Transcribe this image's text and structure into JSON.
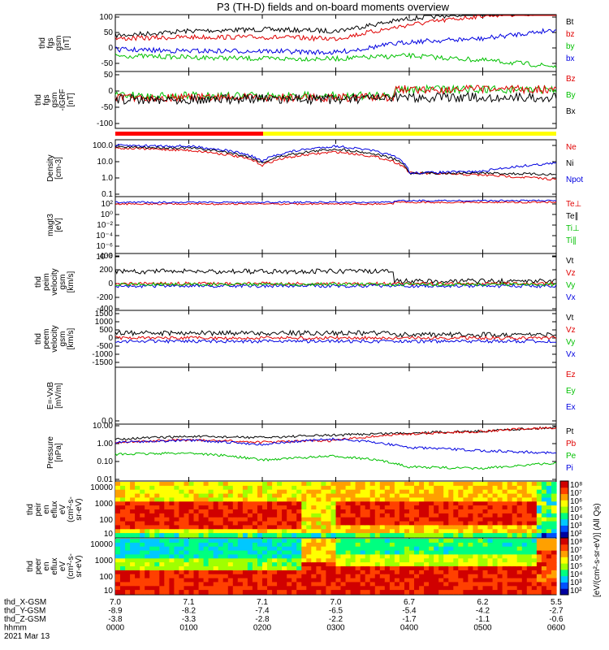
{
  "title": "P3 (TH-D) fields and on-board moments overview",
  "panels": [
    {
      "id": "fgs",
      "ylabel": [
        "thd",
        "fgs",
        "gsm",
        "[nT]"
      ],
      "ticks": [
        "100",
        "50",
        "0",
        "-50"
      ],
      "legend": [
        {
          "label": "Bt",
          "color": "#000000"
        },
        {
          "label": "bz",
          "color": "#e00000"
        },
        {
          "label": "by",
          "color": "#00c000"
        },
        {
          "label": "bx",
          "color": "#0000e0"
        }
      ]
    },
    {
      "id": "fgs-r",
      "ylabel": [
        "thd",
        "fgs",
        "gsm",
        "-IGRF",
        "[nT]"
      ],
      "ticks": [
        "50",
        "0",
        "-50",
        "-100"
      ],
      "legend": [
        {
          "label": "Bz",
          "color": "#e00000"
        },
        {
          "label": "By",
          "color": "#00c000"
        },
        {
          "label": "Bx",
          "color": "#000000"
        }
      ]
    },
    {
      "id": "density",
      "ylabel": [
        "Density",
        "[cm-3]"
      ],
      "ticks": [
        "100.0",
        "10.0",
        "1.0",
        "0.1"
      ],
      "legend": [
        {
          "label": "Ne",
          "color": "#e00000"
        },
        {
          "label": "Ni",
          "color": "#000000"
        },
        {
          "label": "Npot",
          "color": "#0000e0"
        }
      ]
    },
    {
      "id": "temp",
      "ylabel": [
        "magt3",
        "[eV]"
      ],
      "ticks": [
        "10²",
        "10⁰",
        "10⁻²",
        "10⁻⁴",
        "10⁻⁶",
        "10⁻⁸"
      ],
      "legend": [
        {
          "label": "Te⊥",
          "color": "#e00000"
        },
        {
          "label": "Te∥",
          "color": "#000000"
        },
        {
          "label": "Ti⊥",
          "color": "#00c000"
        },
        {
          "label": "Ti∥",
          "color": "#00c000"
        }
      ]
    },
    {
      "id": "peim",
      "ylabel": [
        "thd",
        "peim",
        "velocity",
        "gsm",
        "[km/s]"
      ],
      "ticks": [
        "400",
        "200",
        "0",
        "-200",
        "-400"
      ],
      "legend": [
        {
          "label": "Vt",
          "color": "#000000"
        },
        {
          "label": "Vz",
          "color": "#e00000"
        },
        {
          "label": "Vy",
          "color": "#00c000"
        },
        {
          "label": "Vx",
          "color": "#0000e0"
        }
      ]
    },
    {
      "id": "peem",
      "ylabel": [
        "thd",
        "peem",
        "velocity",
        "gsm",
        "[km/s]"
      ],
      "ticks": [
        "1500",
        "1000",
        "500",
        "0",
        "-500",
        "-1000",
        "-1500"
      ],
      "legend": [
        {
          "label": "Vt",
          "color": "#000000"
        },
        {
          "label": "Vz",
          "color": "#e00000"
        },
        {
          "label": "Vy",
          "color": "#00c000"
        },
        {
          "label": "Vx",
          "color": "#0000e0"
        }
      ]
    },
    {
      "id": "efield",
      "ylabel": [
        "E=-VxB",
        "[mV/m]"
      ],
      "ticks": [
        "0.0"
      ],
      "legend": [
        {
          "label": "Ez",
          "color": "#e00000"
        },
        {
          "label": "Ey",
          "color": "#00c000"
        },
        {
          "label": "Ex",
          "color": "#0000e0"
        }
      ]
    },
    {
      "id": "pressure",
      "ylabel": [
        "Pressure",
        "[nPa]"
      ],
      "ticks": [
        "10.00",
        "1.00",
        "0.10",
        "0.01"
      ],
      "legend": [
        {
          "label": "Pt",
          "color": "#000000"
        },
        {
          "label": "Pb",
          "color": "#e00000"
        },
        {
          "label": "Pe",
          "color": "#00c000"
        },
        {
          "label": "Pi",
          "color": "#0000e0"
        }
      ]
    },
    {
      "id": "peir",
      "ylabel": [
        "thd",
        "peir",
        "en",
        "eflux",
        "eV",
        "(cm²-s-",
        "sr-eV)"
      ],
      "ticks": [
        "10000",
        "1000",
        "100",
        "10"
      ]
    },
    {
      "id": "peer",
      "ylabel": [
        "thd",
        "peer",
        "en",
        "eflux",
        "eV",
        "(cm²-s-",
        "sr-eV)"
      ],
      "ticks": [
        "10000",
        "1000",
        "100",
        "10"
      ]
    }
  ],
  "colorbar": {
    "ticks": [
      "10⁸",
      "10⁷",
      "10⁶",
      "10⁵",
      "10⁴",
      "10³",
      "10²"
    ],
    "label": "[eV/(cm²-s-sr-eV)] (All Qs)"
  },
  "xaxis": {
    "rows": [
      {
        "label": "thd_X-GSM",
        "values": [
          "7.0",
          "7.1",
          "7.1",
          "7.0",
          "6.7",
          "6.2",
          "5.5"
        ]
      },
      {
        "label": "thd_Y-GSM",
        "values": [
          "-8.9",
          "-8.2",
          "-7.4",
          "-6.5",
          "-5.4",
          "-4.2",
          "-2.7"
        ]
      },
      {
        "label": "thd_Z-GSM",
        "values": [
          "-3.8",
          "-3.3",
          "-2.8",
          "-2.2",
          "-1.7",
          "-1.1",
          "-0.6"
        ]
      },
      {
        "label": "hhmm",
        "values": [
          "0000",
          "0100",
          "0200",
          "0300",
          "0400",
          "0500",
          "0600"
        ]
      }
    ],
    "date": "2021 Mar 13"
  },
  "chart_data": {
    "type": "line",
    "title": "P3 (TH-D) fields and on-board moments overview",
    "x_label": "hhmm",
    "x": [
      "0000",
      "0100",
      "0200",
      "0300",
      "0400",
      "0500",
      "0600"
    ],
    "series": [
      {
        "name": "Bt",
        "panel": "fgs",
        "values": [
          40,
          55,
          60,
          55,
          95,
          115,
          115
        ]
      },
      {
        "name": "bz",
        "panel": "fgs",
        "values": [
          30,
          35,
          35,
          30,
          75,
          105,
          115
        ]
      },
      {
        "name": "by",
        "panel": "fgs",
        "values": [
          -25,
          -30,
          -35,
          -35,
          -25,
          -40,
          -60
        ]
      },
      {
        "name": "bx",
        "panel": "fgs",
        "values": [
          -5,
          -10,
          -10,
          -15,
          20,
          30,
          60
        ]
      },
      {
        "name": "Ne",
        "panel": "density",
        "values": [
          70,
          50,
          6,
          40,
          2,
          1.5,
          0.8
        ]
      },
      {
        "name": "Ni",
        "panel": "density",
        "values": [
          80,
          70,
          8,
          60,
          2,
          2,
          1.6
        ]
      },
      {
        "name": "Npot",
        "panel": "density",
        "values": [
          100,
          90,
          10,
          90,
          2,
          2.5,
          8
        ]
      },
      {
        "name": "Pt",
        "panel": "pressure",
        "values": [
          1.8,
          2.5,
          2.2,
          3,
          4,
          5,
          8
        ]
      },
      {
        "name": "Pb",
        "panel": "pressure",
        "values": [
          1.2,
          1.6,
          1.2,
          1.5,
          3.5,
          4.8,
          8
        ]
      },
      {
        "name": "Pe",
        "panel": "pressure",
        "values": [
          0.25,
          0.3,
          0.12,
          0.2,
          0.05,
          0.04,
          0.08
        ]
      },
      {
        "name": "Pi",
        "panel": "pressure",
        "values": [
          1.2,
          1.5,
          0.9,
          1.8,
          0.6,
          0.4,
          0.3
        ]
      }
    ]
  }
}
